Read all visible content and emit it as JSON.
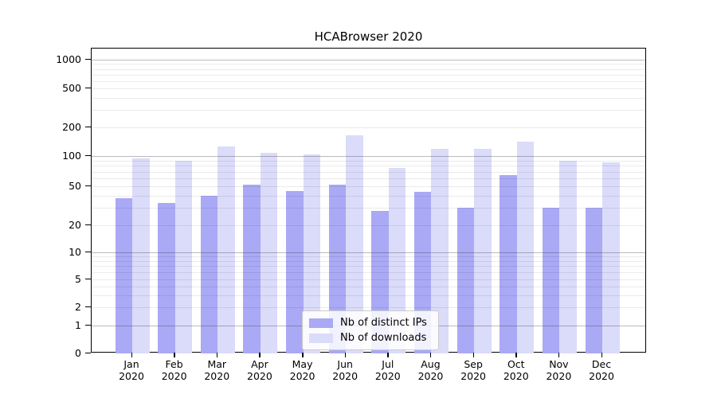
{
  "chart_data": {
    "type": "bar",
    "title": "HCABrowser 2020",
    "categories": [
      "Jan 2020",
      "Feb 2020",
      "Mar 2020",
      "Apr 2020",
      "May 2020",
      "Jun 2020",
      "Jul 2020",
      "Aug 2020",
      "Sep 2020",
      "Oct 2020",
      "Nov 2020",
      "Dec 2020"
    ],
    "series": [
      {
        "name": "Nb of distinct IPs",
        "color": "#a9a9f5",
        "values": [
          38,
          34,
          40,
          52,
          45,
          52,
          28,
          44,
          30,
          65,
          30,
          30
        ]
      },
      {
        "name": "Nb of downloads",
        "color": "#dbdbfa",
        "values": [
          94,
          90,
          125,
          108,
          104,
          165,
          76,
          118,
          120,
          142,
          90,
          86
        ]
      }
    ],
    "yticks": [
      0,
      1,
      2,
      5,
      10,
      20,
      50,
      100,
      200,
      500,
      1000
    ],
    "yscale": "symlog",
    "ylim": [
      0,
      1300
    ],
    "xlabel": "",
    "ylabel": "",
    "grid": true,
    "legend_position": "lower center"
  }
}
